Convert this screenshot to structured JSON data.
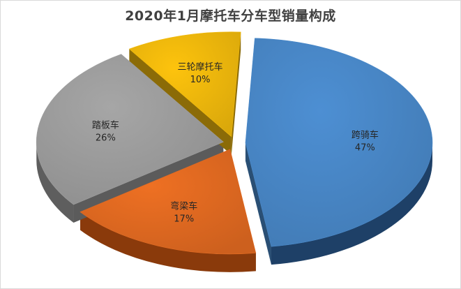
{
  "chart_data": {
    "type": "pie",
    "title": "2020年1月摩托车分车型销量构成",
    "slices": [
      {
        "name": "跨骑车",
        "value": 47,
        "label": "47%",
        "color": "#4d8fd3",
        "side": "#1e4067"
      },
      {
        "name": "弯梁车",
        "value": 17,
        "label": "17%",
        "color": "#ee7023",
        "side": "#8a3a0b"
      },
      {
        "name": "踏板车",
        "value": 26,
        "label": "26%",
        "color": "#a6a6a6",
        "side": "#5e5e5e"
      },
      {
        "name": "三轮摩托车",
        "value": 10,
        "label": "10%",
        "color": "#fdc30d",
        "side": "#9c7402"
      }
    ],
    "exploded": true,
    "three_d": true,
    "legend": "none",
    "data_labels": "category and percentage"
  }
}
